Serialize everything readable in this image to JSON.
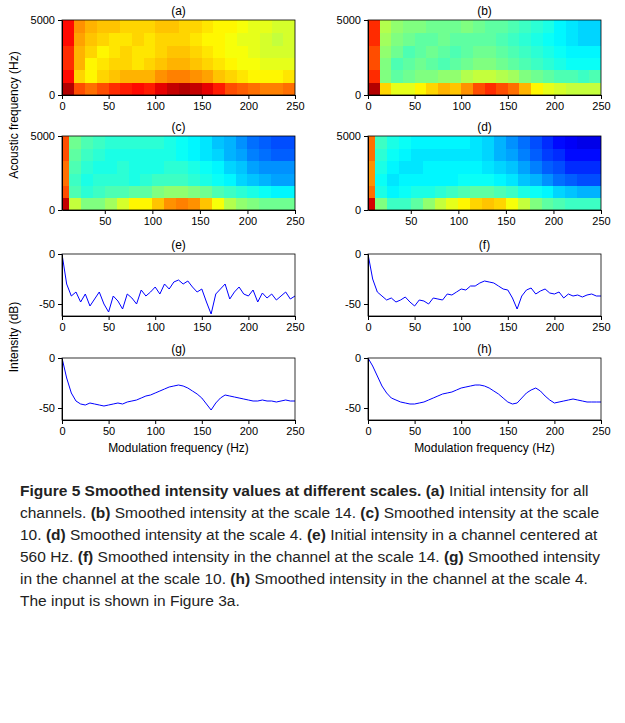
{
  "chart_data": [
    {
      "type": "heatmap",
      "title": "(a)",
      "ylabel": "Acoustic frequency (Hz)",
      "x_bins": [
        0,
        12.5,
        25,
        37.5,
        50,
        62.5,
        75,
        87.5,
        100,
        112.5,
        125,
        137.5,
        150,
        162.5,
        175,
        187.5,
        200,
        212.5,
        225,
        237.5,
        250
      ],
      "y_bins": [
        0,
        833,
        1667,
        2500,
        3333,
        4167,
        5000
      ],
      "cells": [
        [
          -3,
          -12,
          -14,
          -12,
          -10,
          -9,
          -8,
          -9,
          -6,
          -4,
          -3,
          -4,
          -6,
          -9,
          -12,
          -13,
          -14,
          -15,
          -15,
          -14
        ],
        [
          -8,
          -20,
          -22,
          -20,
          -19,
          -18,
          -18,
          -18,
          -16,
          -15,
          -15,
          -16,
          -17,
          -19,
          -20,
          -21,
          -22,
          -22,
          -22,
          -21
        ],
        [
          -10,
          -18,
          -22,
          -21,
          -20,
          -20,
          -21,
          -20,
          -19,
          -18,
          -18,
          -19,
          -20,
          -21,
          -22,
          -23,
          -23,
          -24,
          -24,
          -24
        ],
        [
          -10,
          -18,
          -20,
          -22,
          -21,
          -20,
          -21,
          -21,
          -20,
          -19,
          -19,
          -20,
          -21,
          -22,
          -23,
          -23,
          -24,
          -25,
          -25,
          -25
        ],
        [
          -8,
          -17,
          -19,
          -20,
          -21,
          -21,
          -20,
          -21,
          -20,
          -20,
          -20,
          -21,
          -22,
          -22,
          -23,
          -24,
          -24,
          -25,
          -26,
          -25
        ],
        [
          -8,
          -16,
          -18,
          -19,
          -19,
          -20,
          -20,
          -20,
          -19,
          -19,
          -20,
          -20,
          -21,
          -22,
          -22,
          -23,
          -24,
          -24,
          -25,
          -25
        ]
      ],
      "color_range": [
        -60,
        0
      ],
      "xlim": [
        0,
        250
      ],
      "ylim": [
        0,
        5000
      ],
      "xticks": [
        0,
        50,
        100,
        150,
        200,
        250
      ],
      "yticks": [
        0,
        5000
      ]
    },
    {
      "type": "heatmap",
      "title": "(b)",
      "x_bins": [
        0,
        12.5,
        25,
        37.5,
        50,
        62.5,
        75,
        87.5,
        100,
        112.5,
        125,
        137.5,
        150,
        162.5,
        175,
        187.5,
        200,
        212.5,
        225,
        237.5,
        250
      ],
      "y_bins": [
        0,
        833,
        1667,
        2500,
        3333,
        4167,
        5000
      ],
      "cells": [
        [
          -3,
          -20,
          -24,
          -24,
          -22,
          -20,
          -18,
          -19,
          -16,
          -12,
          -10,
          -12,
          -14,
          -18,
          -22,
          -24,
          -25,
          -26,
          -26,
          -26
        ],
        [
          -10,
          -30,
          -32,
          -31,
          -30,
          -30,
          -29,
          -29,
          -27,
          -26,
          -26,
          -27,
          -28,
          -30,
          -31,
          -32,
          -33,
          -33,
          -34,
          -33
        ],
        [
          -12,
          -30,
          -33,
          -32,
          -31,
          -32,
          -33,
          -32,
          -31,
          -30,
          -30,
          -31,
          -32,
          -33,
          -34,
          -35,
          -36,
          -37,
          -37,
          -37
        ],
        [
          -12,
          -29,
          -31,
          -33,
          -32,
          -31,
          -32,
          -33,
          -32,
          -31,
          -31,
          -32,
          -33,
          -34,
          -35,
          -36,
          -37,
          -38,
          -38,
          -38
        ],
        [
          -10,
          -28,
          -30,
          -31,
          -32,
          -32,
          -31,
          -32,
          -32,
          -32,
          -32,
          -33,
          -34,
          -35,
          -36,
          -37,
          -38,
          -39,
          -40,
          -40
        ],
        [
          -10,
          -27,
          -29,
          -30,
          -30,
          -31,
          -31,
          -31,
          -30,
          -31,
          -32,
          -32,
          -33,
          -34,
          -35,
          -36,
          -38,
          -39,
          -40,
          -40
        ]
      ],
      "color_range": [
        -60,
        0
      ],
      "xlim": [
        0,
        250
      ],
      "ylim": [
        0,
        5000
      ],
      "xticks": [
        0,
        50,
        100,
        150,
        200,
        250
      ],
      "yticks": [
        0,
        5000
      ]
    },
    {
      "type": "heatmap",
      "title": "(c)",
      "x_bins": [
        0,
        12.5,
        25,
        37.5,
        50,
        62.5,
        75,
        87.5,
        100,
        112.5,
        125,
        137.5,
        150,
        162.5,
        175,
        187.5,
        200,
        212.5,
        225,
        237.5,
        250
      ],
      "y_bins": [
        0,
        833,
        1667,
        2500,
        3333,
        4167,
        5000
      ],
      "cells": [
        [
          -4,
          -26,
          -30,
          -30,
          -28,
          -25,
          -22,
          -22,
          -19,
          -16,
          -15,
          -16,
          -19,
          -23,
          -27,
          -29,
          -30,
          -31,
          -31,
          -31
        ],
        [
          -12,
          -33,
          -35,
          -34,
          -33,
          -33,
          -32,
          -32,
          -30,
          -29,
          -29,
          -30,
          -31,
          -33,
          -34,
          -35,
          -36,
          -37,
          -38,
          -38
        ],
        [
          -14,
          -34,
          -36,
          -35,
          -35,
          -35,
          -36,
          -35,
          -34,
          -34,
          -34,
          -35,
          -36,
          -37,
          -38,
          -40,
          -41,
          -42,
          -43,
          -43
        ],
        [
          -14,
          -33,
          -35,
          -36,
          -36,
          -35,
          -36,
          -36,
          -36,
          -35,
          -35,
          -36,
          -37,
          -38,
          -40,
          -41,
          -43,
          -44,
          -44,
          -44
        ],
        [
          -12,
          -32,
          -34,
          -35,
          -36,
          -36,
          -36,
          -36,
          -36,
          -36,
          -37,
          -38,
          -39,
          -40,
          -42,
          -43,
          -45,
          -46,
          -47,
          -47
        ],
        [
          -12,
          -31,
          -33,
          -34,
          -35,
          -35,
          -35,
          -35,
          -35,
          -36,
          -37,
          -38,
          -39,
          -41,
          -42,
          -44,
          -46,
          -47,
          -48,
          -48
        ]
      ],
      "color_range": [
        -60,
        0
      ],
      "xlim": [
        5,
        250
      ],
      "ylim": [
        0,
        5000
      ],
      "xticks": [
        50,
        100,
        150,
        200,
        250
      ],
      "yticks": [
        0,
        5000
      ]
    },
    {
      "type": "heatmap",
      "title": "(d)",
      "x_bins": [
        0,
        12.5,
        25,
        37.5,
        50,
        62.5,
        75,
        87.5,
        100,
        112.5,
        125,
        137.5,
        150,
        162.5,
        175,
        187.5,
        200,
        212.5,
        225,
        237.5,
        250
      ],
      "y_bins": [
        0,
        833,
        1667,
        2500,
        3333,
        4167,
        5000
      ],
      "cells": [
        [
          -5,
          -30,
          -34,
          -34,
          -32,
          -29,
          -26,
          -24,
          -22,
          -20,
          -19,
          -20,
          -23,
          -26,
          -30,
          -32,
          -33,
          -34,
          -34,
          -34
        ],
        [
          -14,
          -36,
          -38,
          -37,
          -36,
          -36,
          -35,
          -34,
          -33,
          -32,
          -32,
          -33,
          -34,
          -36,
          -37,
          -38,
          -40,
          -41,
          -42,
          -42
        ],
        [
          -16,
          -37,
          -39,
          -38,
          -38,
          -38,
          -38,
          -38,
          -37,
          -37,
          -37,
          -38,
          -39,
          -41,
          -42,
          -44,
          -46,
          -47,
          -48,
          -48
        ],
        [
          -16,
          -36,
          -38,
          -39,
          -39,
          -38,
          -38,
          -38,
          -38,
          -38,
          -39,
          -40,
          -41,
          -43,
          -45,
          -47,
          -48,
          -50,
          -50,
          -50
        ],
        [
          -14,
          -35,
          -37,
          -38,
          -39,
          -39,
          -39,
          -39,
          -39,
          -39,
          -40,
          -42,
          -43,
          -45,
          -47,
          -49,
          -50,
          -52,
          -52,
          -52
        ],
        [
          -14,
          -34,
          -36,
          -37,
          -38,
          -38,
          -38,
          -38,
          -38,
          -39,
          -40,
          -42,
          -44,
          -46,
          -48,
          -50,
          -52,
          -53,
          -54,
          -54
        ]
      ],
      "color_range": [
        -60,
        0
      ],
      "xlim": [
        5,
        250
      ],
      "ylim": [
        0,
        5000
      ],
      "xticks": [
        50,
        100,
        150,
        200,
        250
      ],
      "yticks": [
        0,
        5000
      ]
    },
    {
      "type": "line",
      "title": "(e)",
      "ylabel": "Intensity (dB)",
      "color": "#0000ff",
      "x": [
        0,
        5,
        10,
        15,
        20,
        25,
        30,
        35,
        40,
        45,
        50,
        55,
        60,
        65,
        70,
        75,
        80,
        85,
        90,
        95,
        100,
        105,
        110,
        115,
        120,
        125,
        130,
        135,
        140,
        145,
        150,
        155,
        160,
        165,
        170,
        175,
        180,
        185,
        190,
        195,
        200,
        205,
        210,
        215,
        220,
        225,
        230,
        235,
        240,
        245,
        250
      ],
      "values": [
        0,
        -30,
        -42,
        -38,
        -48,
        -40,
        -52,
        -45,
        -38,
        -50,
        -58,
        -42,
        -47,
        -55,
        -40,
        -44,
        -50,
        -36,
        -42,
        -38,
        -33,
        -40,
        -30,
        -35,
        -28,
        -26,
        -30,
        -27,
        -33,
        -38,
        -35,
        -48,
        -60,
        -40,
        -35,
        -30,
        -45,
        -38,
        -33,
        -40,
        -42,
        -36,
        -48,
        -39,
        -44,
        -40,
        -46,
        -42,
        -38,
        -45,
        -42
      ],
      "xlim": [
        0,
        250
      ],
      "ylim": [
        -62,
        0
      ],
      "xticks": [
        0,
        50,
        100,
        150,
        200,
        250
      ],
      "yticks": [
        -50,
        0
      ]
    },
    {
      "type": "line",
      "title": "(f)",
      "color": "#0000ff",
      "x": [
        0,
        5,
        10,
        15,
        20,
        25,
        30,
        35,
        40,
        45,
        50,
        55,
        60,
        65,
        70,
        75,
        80,
        85,
        90,
        95,
        100,
        105,
        110,
        115,
        120,
        125,
        130,
        135,
        140,
        145,
        150,
        155,
        160,
        165,
        170,
        175,
        180,
        185,
        190,
        195,
        200,
        205,
        210,
        215,
        220,
        225,
        230,
        235,
        240,
        245,
        250
      ],
      "values": [
        0,
        -25,
        -38,
        -42,
        -46,
        -44,
        -48,
        -46,
        -43,
        -48,
        -52,
        -46,
        -47,
        -50,
        -44,
        -45,
        -46,
        -40,
        -41,
        -38,
        -35,
        -36,
        -32,
        -32,
        -29,
        -27,
        -28,
        -29,
        -32,
        -35,
        -36,
        -44,
        -55,
        -42,
        -36,
        -34,
        -40,
        -37,
        -35,
        -39,
        -40,
        -38,
        -44,
        -40,
        -42,
        -41,
        -43,
        -41,
        -40,
        -42,
        -42
      ],
      "xlim": [
        0,
        250
      ],
      "ylim": [
        -62,
        0
      ],
      "xticks": [
        0,
        50,
        100,
        150,
        200,
        250
      ],
      "yticks": [
        -50,
        0
      ]
    },
    {
      "type": "line",
      "title": "(g)",
      "xlabel": "Modulation frequency (Hz)",
      "color": "#0000ff",
      "x": [
        0,
        5,
        10,
        15,
        20,
        25,
        30,
        35,
        40,
        45,
        50,
        55,
        60,
        65,
        70,
        75,
        80,
        85,
        90,
        95,
        100,
        105,
        110,
        115,
        120,
        125,
        130,
        135,
        140,
        145,
        150,
        155,
        160,
        165,
        170,
        175,
        180,
        185,
        190,
        195,
        200,
        205,
        210,
        215,
        220,
        225,
        230,
        235,
        240,
        245,
        250
      ],
      "values": [
        0,
        -20,
        -35,
        -43,
        -46,
        -47,
        -45,
        -46,
        -47,
        -48,
        -47,
        -46,
        -45,
        -46,
        -44,
        -43,
        -42,
        -40,
        -38,
        -37,
        -35,
        -33,
        -31,
        -29,
        -28,
        -27,
        -28,
        -30,
        -33,
        -36,
        -40,
        -46,
        -52,
        -45,
        -40,
        -37,
        -38,
        -39,
        -40,
        -41,
        -42,
        -43,
        -43,
        -42,
        -43,
        -43,
        -44,
        -43,
        -42,
        -43,
        -43
      ],
      "xlim": [
        0,
        250
      ],
      "ylim": [
        -62,
        0
      ],
      "xticks": [
        0,
        50,
        100,
        150,
        200,
        250
      ],
      "yticks": [
        -50,
        0
      ]
    },
    {
      "type": "line",
      "title": "(h)",
      "xlabel": "Modulation frequency (Hz)",
      "color": "#0000ff",
      "x": [
        0,
        5,
        10,
        15,
        20,
        25,
        30,
        35,
        40,
        45,
        50,
        55,
        60,
        65,
        70,
        75,
        80,
        85,
        90,
        95,
        100,
        105,
        110,
        115,
        120,
        125,
        130,
        135,
        140,
        145,
        150,
        155,
        160,
        165,
        170,
        175,
        180,
        185,
        190,
        195,
        200,
        205,
        210,
        215,
        220,
        225,
        230,
        235,
        240,
        245,
        250
      ],
      "values": [
        0,
        -8,
        -18,
        -28,
        -35,
        -40,
        -42,
        -44,
        -45,
        -46,
        -46,
        -45,
        -44,
        -42,
        -40,
        -38,
        -36,
        -35,
        -34,
        -32,
        -30,
        -29,
        -28,
        -27,
        -27,
        -28,
        -30,
        -33,
        -36,
        -40,
        -44,
        -46,
        -45,
        -40,
        -35,
        -32,
        -30,
        -33,
        -38,
        -42,
        -45,
        -44,
        -43,
        -42,
        -41,
        -42,
        -43,
        -44,
        -44,
        -44,
        -44
      ],
      "xlim": [
        0,
        250
      ],
      "ylim": [
        -62,
        0
      ],
      "xticks": [
        0,
        50,
        100,
        150,
        200,
        250
      ],
      "yticks": [
        -50,
        0
      ]
    }
  ],
  "caption": {
    "title": "Figure 5 Smoothed intensity values at different scales.",
    "items": [
      {
        "label": "(a)",
        "text": "Initial intensity for all channels."
      },
      {
        "label": "(b)",
        "text": "Smoothed intensity at the scale 14."
      },
      {
        "label": "(c)",
        "text": "Smoothed intensity at the scale 10."
      },
      {
        "label": "(d)",
        "text": "Smoothed intensity at the scale 4."
      },
      {
        "label": "(e)",
        "text": "Initial intensity in a channel centered at 560 Hz."
      },
      {
        "label": "(f)",
        "text": "Smoothed intensity in the channel at the scale 14."
      },
      {
        "label": "(g)",
        "text": "Smoothed intensity in the channel at the scale 10."
      },
      {
        "label": "(h)",
        "text": "Smoothed intensity in the channel at the scale 4."
      }
    ],
    "note": "The input is shown in Figure 3a."
  }
}
